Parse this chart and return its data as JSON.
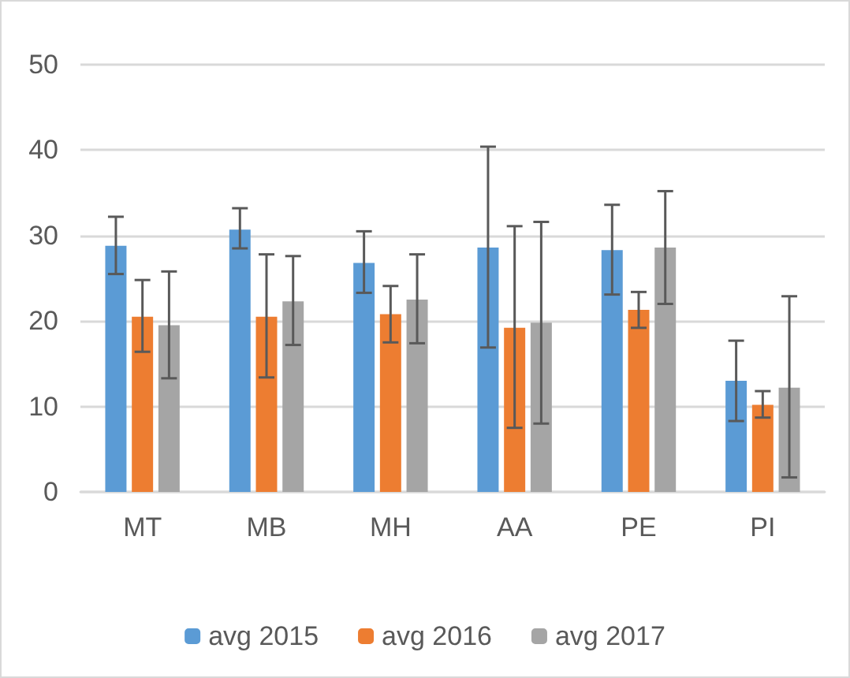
{
  "chart_data": {
    "type": "bar",
    "categories": [
      "MT",
      "MB",
      "MH",
      "AA",
      "PE",
      "PI"
    ],
    "series": [
      {
        "name": "avg 2015",
        "color": "#5b9bd5",
        "values": [
          28.8,
          30.7,
          26.8,
          28.6,
          28.3,
          13.0
        ],
        "errors": [
          [
            25.5,
            32.2
          ],
          [
            28.5,
            33.2
          ],
          [
            23.3,
            30.5
          ],
          [
            16.9,
            40.4
          ],
          [
            23.1,
            33.6
          ],
          [
            8.3,
            17.7
          ]
        ]
      },
      {
        "name": "avg 2016",
        "color": "#ed7d31",
        "values": [
          20.5,
          20.5,
          20.8,
          19.2,
          21.3,
          10.2
        ],
        "errors": [
          [
            16.4,
            24.8
          ],
          [
            13.4,
            27.8
          ],
          [
            17.5,
            24.1
          ],
          [
            7.5,
            31.1
          ],
          [
            19.2,
            23.4
          ],
          [
            8.7,
            11.8
          ]
        ]
      },
      {
        "name": "avg 2017",
        "color": "#a5a5a5",
        "values": [
          19.5,
          22.3,
          22.5,
          19.8,
          28.6,
          12.2
        ],
        "errors": [
          [
            13.3,
            25.8
          ],
          [
            17.2,
            27.6
          ],
          [
            17.4,
            27.8
          ],
          [
            8.0,
            31.6
          ],
          [
            22.0,
            35.2
          ],
          [
            1.7,
            22.9
          ]
        ]
      }
    ],
    "ylim": [
      0,
      50
    ],
    "yticks": [
      0,
      10,
      20,
      30,
      40,
      50
    ],
    "grid": "y",
    "legend": "bottom"
  }
}
